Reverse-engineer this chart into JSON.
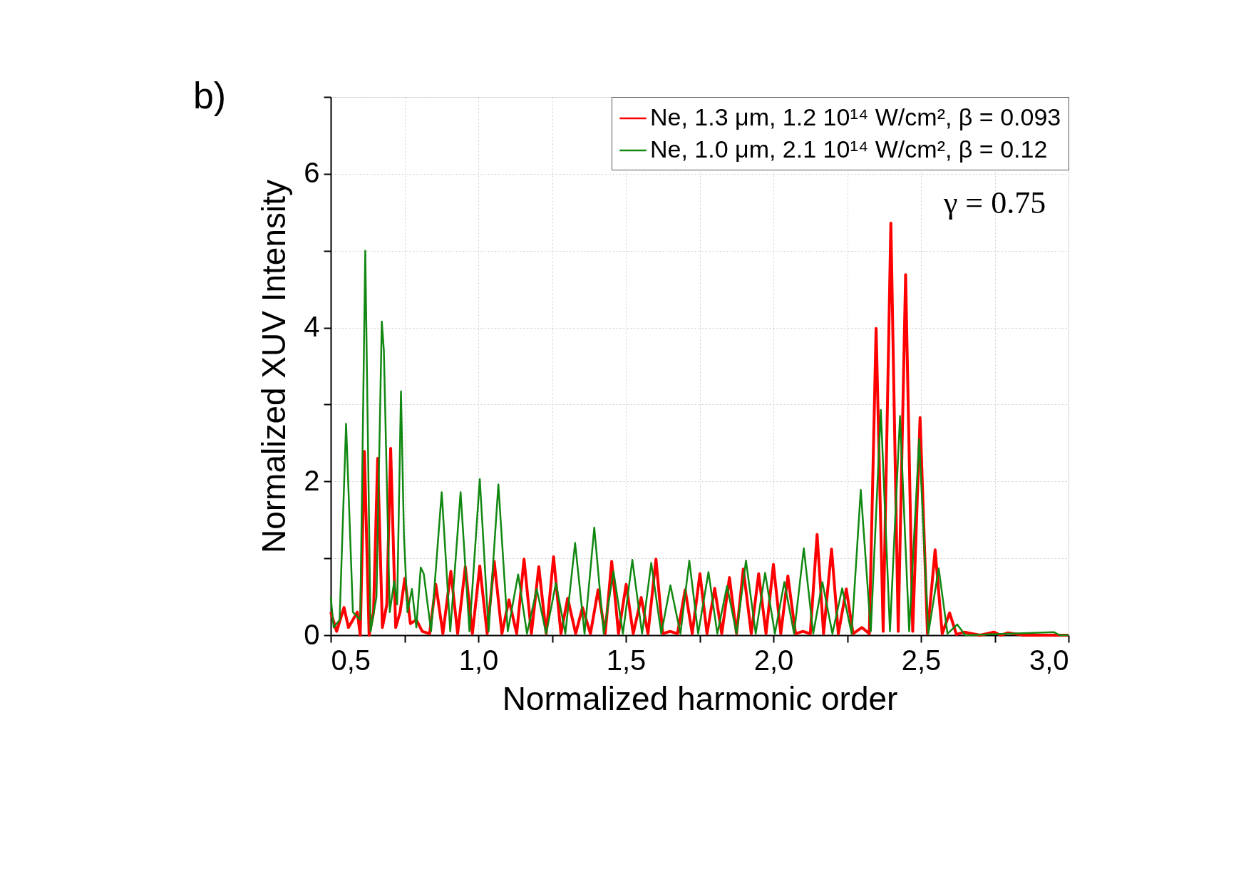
{
  "chart_data": {
    "type": "line",
    "xlabel": "Normalized harmonic order",
    "ylabel": "Normalized XUV Intensity",
    "annotations": [
      "b)",
      "γ = 0.75"
    ],
    "xlim": [
      0.5,
      3.0
    ],
    "xticks": [
      {
        "value": 0.5,
        "label": "0,5"
      },
      {
        "value": 0.75,
        "label": null
      },
      {
        "value": 1.0,
        "label": "1,0"
      },
      {
        "value": 1.25,
        "label": null
      },
      {
        "value": 1.5,
        "label": "1,5"
      },
      {
        "value": 1.75,
        "label": null
      },
      {
        "value": 2.0,
        "label": "2,0"
      },
      {
        "value": 2.25,
        "label": null
      },
      {
        "value": 2.5,
        "label": "2,5"
      },
      {
        "value": 2.75,
        "label": null
      },
      {
        "value": 3.0,
        "label": "3,0"
      }
    ],
    "ylim": [
      0,
      7
    ],
    "yticks": [
      0,
      {
        "value": 1,
        "label": null
      },
      2,
      {
        "value": 3,
        "label": null
      },
      4,
      {
        "value": 5,
        "label": null
      },
      6,
      {
        "value": 7,
        "label": null
      }
    ],
    "grid": true,
    "legend": "top right",
    "line_style": "solid",
    "marker": "none",
    "series": [
      {
        "name": "Ne, 1.3 μm, 1.2 10¹⁴ W/cm², β = 0.093",
        "color": "#ff0000",
        "x": [
          0.5,
          0.52,
          0.545,
          0.56,
          0.59,
          0.6,
          0.614,
          0.63,
          0.645,
          0.659,
          0.675,
          0.69,
          0.703,
          0.72,
          0.735,
          0.751,
          0.77,
          0.79,
          0.81,
          0.835,
          0.856,
          0.88,
          0.907,
          0.93,
          0.956,
          0.98,
          1.005,
          1.03,
          1.054,
          1.08,
          1.104,
          1.13,
          1.155,
          1.18,
          1.205,
          1.23,
          1.255,
          1.28,
          1.303,
          1.33,
          1.353,
          1.38,
          1.406,
          1.43,
          1.452,
          1.475,
          1.501,
          1.525,
          1.552,
          1.575,
          1.602,
          1.625,
          1.65,
          1.675,
          1.701,
          1.725,
          1.751,
          1.775,
          1.801,
          1.825,
          1.851,
          1.875,
          1.898,
          1.925,
          1.95,
          1.975,
          2.0,
          2.025,
          2.049,
          2.075,
          2.1,
          2.125,
          2.148,
          2.17,
          2.197,
          2.22,
          2.247,
          2.27,
          2.3,
          2.325,
          2.348,
          2.372,
          2.398,
          2.423,
          2.448,
          2.472,
          2.497,
          2.522,
          2.548,
          2.572,
          2.597,
          2.62,
          2.647,
          2.7,
          2.747,
          2.77,
          2.795,
          2.85,
          3.0
        ],
        "values": [
          0.3,
          0.05,
          0.36,
          0.1,
          0.3,
          0.0,
          2.39,
          0.0,
          0.3,
          2.3,
          0.1,
          0.4,
          2.43,
          0.1,
          0.3,
          0.74,
          0.15,
          0.2,
          0.05,
          0.02,
          0.66,
          0.02,
          0.83,
          0.02,
          0.89,
          0.02,
          0.9,
          0.02,
          0.96,
          0.02,
          0.46,
          0.02,
          0.99,
          0.02,
          0.89,
          0.02,
          1.02,
          0.02,
          0.48,
          0.02,
          0.36,
          0.02,
          0.59,
          0.02,
          0.96,
          0.02,
          0.66,
          0.02,
          0.49,
          0.02,
          0.99,
          0.02,
          0.05,
          0.02,
          0.59,
          0.02,
          0.8,
          0.02,
          0.61,
          0.02,
          0.75,
          0.02,
          0.86,
          0.02,
          0.8,
          0.02,
          0.92,
          0.02,
          0.77,
          0.02,
          0.05,
          0.02,
          1.31,
          0.02,
          1.12,
          0.02,
          0.6,
          0.02,
          0.1,
          0.02,
          3.99,
          0.05,
          5.36,
          0.05,
          4.69,
          0.05,
          2.83,
          0.02,
          1.11,
          0.02,
          0.29,
          0.01,
          0.04,
          0.0,
          0.04,
          0.0,
          0.03,
          0.0,
          0.0
        ]
      },
      {
        "name": "Ne, 1.0 μm, 2.1 10¹⁴ W/cm², β = 0.12",
        "color": "#118811",
        "x": [
          0.5,
          0.51,
          0.53,
          0.552,
          0.575,
          0.6,
          0.617,
          0.635,
          0.655,
          0.673,
          0.68,
          0.7,
          0.715,
          0.725,
          0.738,
          0.748,
          0.76,
          0.775,
          0.79,
          0.805,
          0.815,
          0.84,
          0.876,
          0.905,
          0.94,
          0.97,
          1.005,
          1.035,
          1.068,
          1.1,
          1.135,
          1.165,
          1.198,
          1.23,
          1.263,
          1.295,
          1.328,
          1.36,
          1.393,
          1.425,
          1.458,
          1.49,
          1.522,
          1.555,
          1.586,
          1.62,
          1.651,
          1.685,
          1.715,
          1.745,
          1.78,
          1.81,
          1.843,
          1.875,
          1.907,
          1.94,
          1.972,
          2.005,
          2.037,
          2.07,
          2.103,
          2.135,
          2.166,
          2.2,
          2.233,
          2.265,
          2.296,
          2.33,
          2.364,
          2.395,
          2.429,
          2.46,
          2.494,
          2.525,
          2.56,
          2.59,
          2.623,
          2.65,
          2.95,
          2.97,
          3.0
        ],
        "values": [
          0.5,
          0.1,
          0.2,
          2.75,
          0.3,
          0.2,
          5.0,
          0.05,
          0.5,
          4.08,
          3.7,
          0.3,
          0.7,
          0.4,
          3.17,
          1.3,
          0.3,
          0.6,
          0.1,
          0.88,
          0.8,
          0.05,
          1.86,
          0.05,
          1.86,
          0.05,
          2.03,
          0.05,
          1.96,
          0.05,
          0.79,
          0.02,
          0.6,
          0.02,
          0.68,
          0.02,
          1.2,
          0.02,
          1.4,
          0.02,
          0.83,
          0.02,
          0.98,
          0.02,
          0.94,
          0.02,
          0.65,
          0.02,
          0.97,
          0.02,
          0.82,
          0.02,
          0.64,
          0.02,
          0.97,
          0.02,
          0.81,
          0.02,
          0.69,
          0.02,
          1.13,
          0.02,
          0.69,
          0.02,
          0.61,
          0.02,
          1.89,
          0.05,
          2.93,
          0.05,
          2.85,
          0.05,
          2.55,
          0.02,
          0.87,
          0.02,
          0.14,
          0.0,
          0.04,
          0.0,
          0.0
        ]
      }
    ]
  }
}
